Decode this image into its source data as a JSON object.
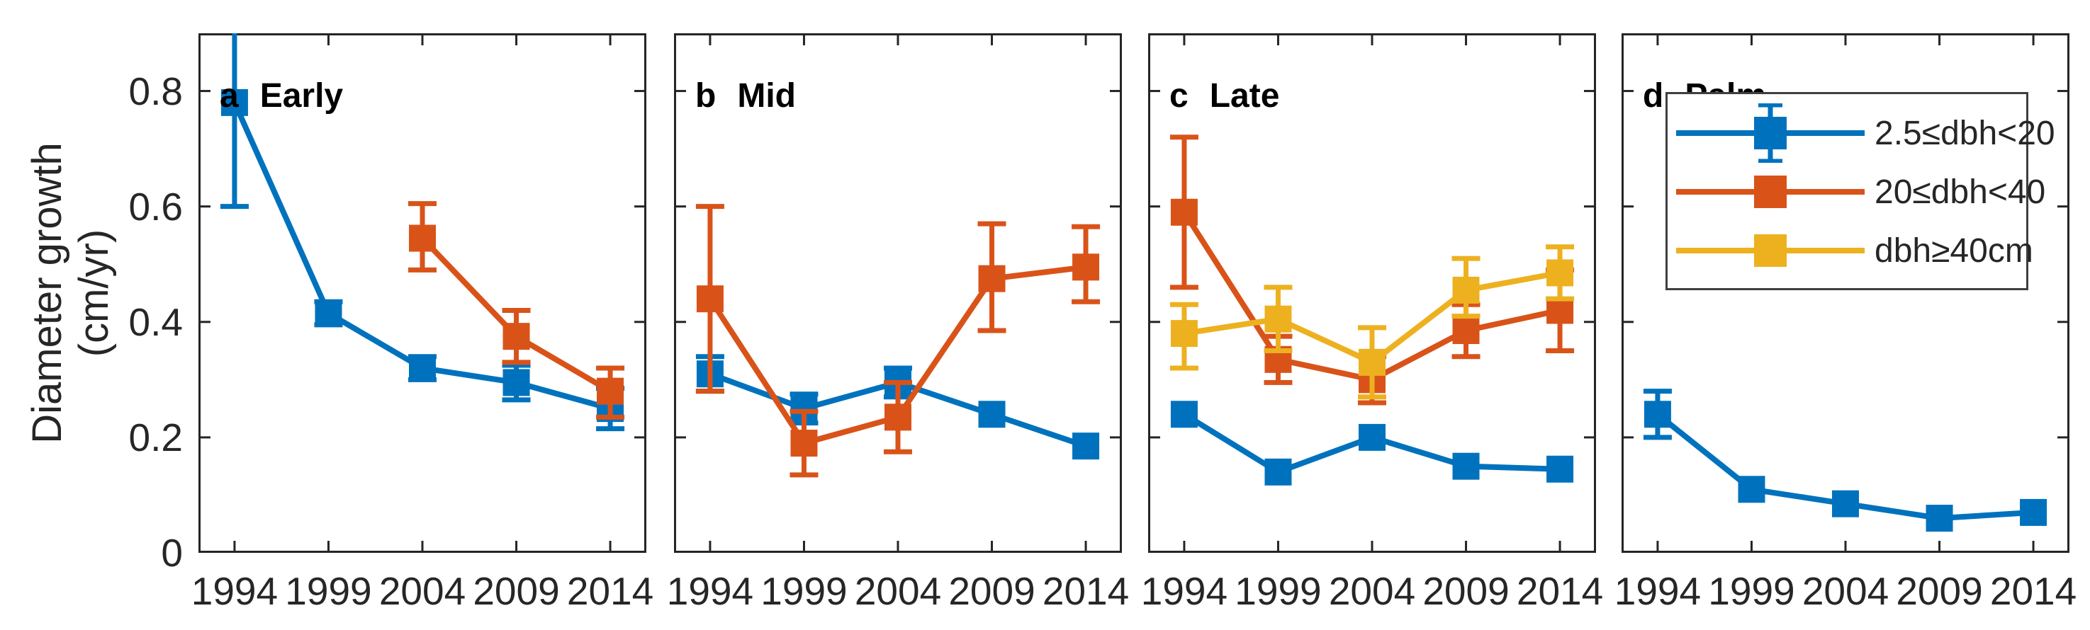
{
  "figure": {
    "ylabel_line1": "Diameter growth",
    "ylabel_line2": "(cm/yr)"
  },
  "chart_data": {
    "type": "line",
    "x": [
      1994,
      1999,
      2004,
      2009,
      2014
    ],
    "x_tick_labels": [
      "1994",
      "1999",
      "2004",
      "2009",
      "2014"
    ],
    "ylim": [
      0,
      0.9
    ],
    "yticks": [
      0,
      0.2,
      0.4,
      0.6,
      0.8
    ],
    "ytick_labels": [
      "0",
      "0.2",
      "0.4",
      "0.6",
      "0.8"
    ],
    "ylabel": "Diameter growth (cm/yr)",
    "grid": false,
    "legend_position": "inside panel d, top",
    "colors": {
      "blue": "#0072BD",
      "orange": "#D95319",
      "yellow": "#EDB120",
      "axis": "#252525",
      "text": "#262626"
    },
    "legend": {
      "entries": [
        {
          "label": "2.5≤dbh<20",
          "color_key": "blue",
          "error_caps": true
        },
        {
          "label": "20≤dbh<40",
          "color_key": "orange",
          "error_caps": false
        },
        {
          "label": "dbh≥40cm",
          "color_key": "yellow",
          "error_caps": false
        }
      ]
    },
    "panels": [
      {
        "label": "a",
        "title": "Early",
        "series": [
          {
            "name": "2.5≤dbh<20",
            "color_key": "blue",
            "points": [
              {
                "x": 1994,
                "y": 0.78,
                "lo": 0.6,
                "hi": 0.96,
                "hi_clipped": true
              },
              {
                "x": 1999,
                "y": 0.415,
                "lo": 0.395,
                "hi": 0.435
              },
              {
                "x": 2004,
                "y": 0.32,
                "lo": 0.3,
                "hi": 0.34
              },
              {
                "x": 2009,
                "y": 0.295,
                "lo": 0.265,
                "hi": 0.325
              },
              {
                "x": 2014,
                "y": 0.25,
                "lo": 0.215,
                "hi": 0.285
              }
            ]
          },
          {
            "name": "20≤dbh<40",
            "color_key": "orange",
            "points": [
              {
                "x": 2004,
                "y": 0.545,
                "lo": 0.49,
                "hi": 0.605
              },
              {
                "x": 2009,
                "y": 0.375,
                "lo": 0.33,
                "hi": 0.42
              },
              {
                "x": 2014,
                "y": 0.28,
                "lo": 0.235,
                "hi": 0.32
              }
            ]
          }
        ]
      },
      {
        "label": "b",
        "title": "Mid",
        "series": [
          {
            "name": "2.5≤dbh<20",
            "color_key": "blue",
            "points": [
              {
                "x": 1994,
                "y": 0.31,
                "lo": 0.28,
                "hi": 0.34
              },
              {
                "x": 1999,
                "y": 0.25,
                "lo": 0.225,
                "hi": 0.275
              },
              {
                "x": 2004,
                "y": 0.295,
                "lo": 0.27,
                "hi": 0.32
              },
              {
                "x": 2009,
                "y": 0.24
              },
              {
                "x": 2014,
                "y": 0.185
              }
            ]
          },
          {
            "name": "20≤dbh<40",
            "color_key": "orange",
            "points": [
              {
                "x": 1994,
                "y": 0.44,
                "lo": 0.28,
                "hi": 0.6
              },
              {
                "x": 1999,
                "y": 0.19,
                "lo": 0.135,
                "hi": 0.245
              },
              {
                "x": 2004,
                "y": 0.235,
                "lo": 0.175,
                "hi": 0.295
              },
              {
                "x": 2009,
                "y": 0.475,
                "lo": 0.385,
                "hi": 0.57
              },
              {
                "x": 2014,
                "y": 0.495,
                "lo": 0.435,
                "hi": 0.565
              }
            ]
          }
        ]
      },
      {
        "label": "c",
        "title": "Late",
        "series": [
          {
            "name": "2.5≤dbh<20",
            "color_key": "blue",
            "points": [
              {
                "x": 1994,
                "y": 0.24
              },
              {
                "x": 1999,
                "y": 0.14
              },
              {
                "x": 2004,
                "y": 0.2
              },
              {
                "x": 2009,
                "y": 0.15
              },
              {
                "x": 2014,
                "y": 0.145
              }
            ]
          },
          {
            "name": "20≤dbh<40",
            "color_key": "orange",
            "points": [
              {
                "x": 1994,
                "y": 0.59,
                "lo": 0.46,
                "hi": 0.72
              },
              {
                "x": 1999,
                "y": 0.335,
                "lo": 0.295,
                "hi": 0.375
              },
              {
                "x": 2004,
                "y": 0.3,
                "lo": 0.26,
                "hi": 0.34
              },
              {
                "x": 2009,
                "y": 0.385,
                "lo": 0.34,
                "hi": 0.43
              },
              {
                "x": 2014,
                "y": 0.42,
                "lo": 0.35,
                "hi": 0.49
              }
            ]
          },
          {
            "name": "dbh≥40cm",
            "color_key": "yellow",
            "points": [
              {
                "x": 1994,
                "y": 0.38,
                "lo": 0.32,
                "hi": 0.43
              },
              {
                "x": 1999,
                "y": 0.405,
                "lo": 0.35,
                "hi": 0.46
              },
              {
                "x": 2004,
                "y": 0.33,
                "lo": 0.27,
                "hi": 0.39
              },
              {
                "x": 2009,
                "y": 0.455,
                "lo": 0.41,
                "hi": 0.51
              },
              {
                "x": 2014,
                "y": 0.485,
                "lo": 0.44,
                "hi": 0.53
              }
            ]
          }
        ]
      },
      {
        "label": "d",
        "title": "Palm",
        "has_legend": true,
        "series": [
          {
            "name": "2.5≤dbh<20",
            "color_key": "blue",
            "points": [
              {
                "x": 1994,
                "y": 0.24,
                "lo": 0.2,
                "hi": 0.28
              },
              {
                "x": 1999,
                "y": 0.11
              },
              {
                "x": 2004,
                "y": 0.085
              },
              {
                "x": 2009,
                "y": 0.06
              },
              {
                "x": 2014,
                "y": 0.07
              }
            ]
          }
        ]
      }
    ]
  }
}
